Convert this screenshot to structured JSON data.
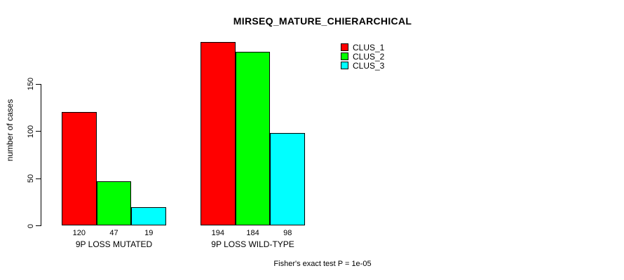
{
  "chart_data": {
    "type": "bar",
    "title": "MIRSEQ_MATURE_CHIERARCHICAL",
    "xlabel": "",
    "ylabel": "number of cases",
    "categories": [
      "9P LOSS MUTATED",
      "9P LOSS WILD-TYPE"
    ],
    "series": [
      {
        "name": "CLUS_1",
        "color": "#ff0000",
        "values": [
          120,
          194
        ]
      },
      {
        "name": "CLUS_2",
        "color": "#00ff00",
        "values": [
          47,
          184
        ]
      },
      {
        "name": "CLUS_3",
        "color": "#00ffff",
        "values": [
          19,
          98
        ]
      }
    ],
    "yticks": [
      0,
      50,
      100,
      150
    ],
    "ylim": [
      0,
      200
    ],
    "grid": false,
    "legend_position": "top-right",
    "bar_border_color": "#000000",
    "background_color": "#ffffff",
    "annotation": "Fisher's exact test P = 1e-05"
  }
}
